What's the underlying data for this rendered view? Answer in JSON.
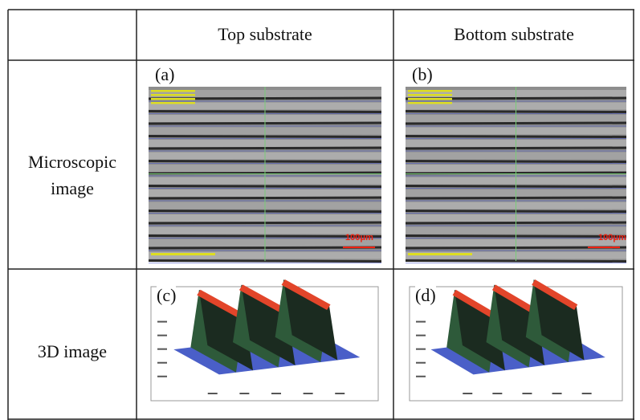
{
  "columns": [
    "Top substrate",
    "Bottom substrate"
  ],
  "rows": [
    {
      "label": "Microscopic image",
      "panels": [
        "(a)",
        "(b)"
      ]
    },
    {
      "label": "3D image",
      "panels": [
        "(c)",
        "(d)"
      ]
    }
  ],
  "scale_bar": "100μm"
}
